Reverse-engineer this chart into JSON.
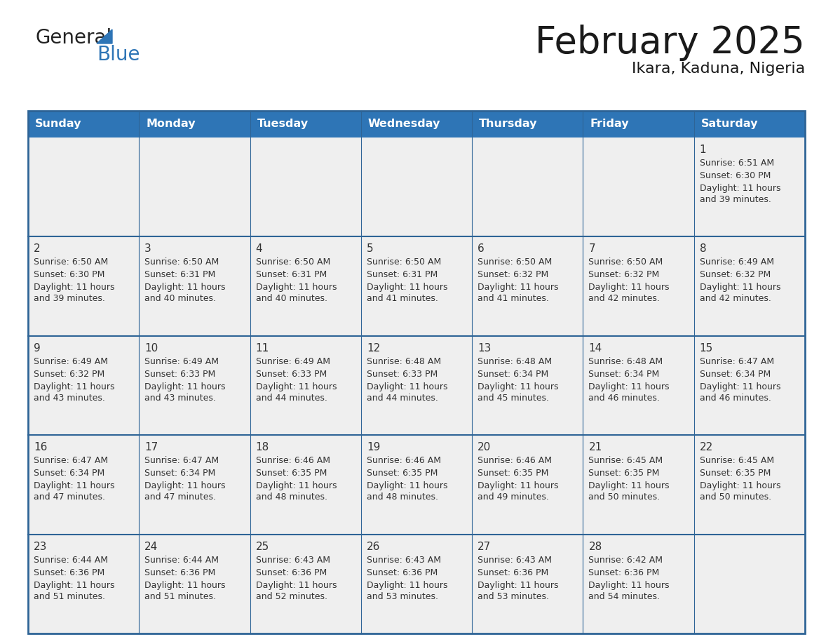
{
  "title": "February 2025",
  "subtitle": "Ikara, Kaduna, Nigeria",
  "header_bg": "#2E75B6",
  "header_text_color": "#FFFFFF",
  "cell_bg": "#EFEFEF",
  "border_color": "#2E6496",
  "text_color": "#333333",
  "day_num_color": "#2E6496",
  "days_of_week": [
    "Sunday",
    "Monday",
    "Tuesday",
    "Wednesday",
    "Thursday",
    "Friday",
    "Saturday"
  ],
  "calendar_data": [
    [
      null,
      null,
      null,
      null,
      null,
      null,
      {
        "day": 1,
        "sunrise": "6:51 AM",
        "sunset": "6:30 PM",
        "daylight_line1": "Daylight: 11 hours",
        "daylight_line2": "and 39 minutes."
      }
    ],
    [
      {
        "day": 2,
        "sunrise": "6:50 AM",
        "sunset": "6:30 PM",
        "daylight_line1": "Daylight: 11 hours",
        "daylight_line2": "and 39 minutes."
      },
      {
        "day": 3,
        "sunrise": "6:50 AM",
        "sunset": "6:31 PM",
        "daylight_line1": "Daylight: 11 hours",
        "daylight_line2": "and 40 minutes."
      },
      {
        "day": 4,
        "sunrise": "6:50 AM",
        "sunset": "6:31 PM",
        "daylight_line1": "Daylight: 11 hours",
        "daylight_line2": "and 40 minutes."
      },
      {
        "day": 5,
        "sunrise": "6:50 AM",
        "sunset": "6:31 PM",
        "daylight_line1": "Daylight: 11 hours",
        "daylight_line2": "and 41 minutes."
      },
      {
        "day": 6,
        "sunrise": "6:50 AM",
        "sunset": "6:32 PM",
        "daylight_line1": "Daylight: 11 hours",
        "daylight_line2": "and 41 minutes."
      },
      {
        "day": 7,
        "sunrise": "6:50 AM",
        "sunset": "6:32 PM",
        "daylight_line1": "Daylight: 11 hours",
        "daylight_line2": "and 42 minutes."
      },
      {
        "day": 8,
        "sunrise": "6:49 AM",
        "sunset": "6:32 PM",
        "daylight_line1": "Daylight: 11 hours",
        "daylight_line2": "and 42 minutes."
      }
    ],
    [
      {
        "day": 9,
        "sunrise": "6:49 AM",
        "sunset": "6:32 PM",
        "daylight_line1": "Daylight: 11 hours",
        "daylight_line2": "and 43 minutes."
      },
      {
        "day": 10,
        "sunrise": "6:49 AM",
        "sunset": "6:33 PM",
        "daylight_line1": "Daylight: 11 hours",
        "daylight_line2": "and 43 minutes."
      },
      {
        "day": 11,
        "sunrise": "6:49 AM",
        "sunset": "6:33 PM",
        "daylight_line1": "Daylight: 11 hours",
        "daylight_line2": "and 44 minutes."
      },
      {
        "day": 12,
        "sunrise": "6:48 AM",
        "sunset": "6:33 PM",
        "daylight_line1": "Daylight: 11 hours",
        "daylight_line2": "and 44 minutes."
      },
      {
        "day": 13,
        "sunrise": "6:48 AM",
        "sunset": "6:34 PM",
        "daylight_line1": "Daylight: 11 hours",
        "daylight_line2": "and 45 minutes."
      },
      {
        "day": 14,
        "sunrise": "6:48 AM",
        "sunset": "6:34 PM",
        "daylight_line1": "Daylight: 11 hours",
        "daylight_line2": "and 46 minutes."
      },
      {
        "day": 15,
        "sunrise": "6:47 AM",
        "sunset": "6:34 PM",
        "daylight_line1": "Daylight: 11 hours",
        "daylight_line2": "and 46 minutes."
      }
    ],
    [
      {
        "day": 16,
        "sunrise": "6:47 AM",
        "sunset": "6:34 PM",
        "daylight_line1": "Daylight: 11 hours",
        "daylight_line2": "and 47 minutes."
      },
      {
        "day": 17,
        "sunrise": "6:47 AM",
        "sunset": "6:34 PM",
        "daylight_line1": "Daylight: 11 hours",
        "daylight_line2": "and 47 minutes."
      },
      {
        "day": 18,
        "sunrise": "6:46 AM",
        "sunset": "6:35 PM",
        "daylight_line1": "Daylight: 11 hours",
        "daylight_line2": "and 48 minutes."
      },
      {
        "day": 19,
        "sunrise": "6:46 AM",
        "sunset": "6:35 PM",
        "daylight_line1": "Daylight: 11 hours",
        "daylight_line2": "and 48 minutes."
      },
      {
        "day": 20,
        "sunrise": "6:46 AM",
        "sunset": "6:35 PM",
        "daylight_line1": "Daylight: 11 hours",
        "daylight_line2": "and 49 minutes."
      },
      {
        "day": 21,
        "sunrise": "6:45 AM",
        "sunset": "6:35 PM",
        "daylight_line1": "Daylight: 11 hours",
        "daylight_line2": "and 50 minutes."
      },
      {
        "day": 22,
        "sunrise": "6:45 AM",
        "sunset": "6:35 PM",
        "daylight_line1": "Daylight: 11 hours",
        "daylight_line2": "and 50 minutes."
      }
    ],
    [
      {
        "day": 23,
        "sunrise": "6:44 AM",
        "sunset": "6:36 PM",
        "daylight_line1": "Daylight: 11 hours",
        "daylight_line2": "and 51 minutes."
      },
      {
        "day": 24,
        "sunrise": "6:44 AM",
        "sunset": "6:36 PM",
        "daylight_line1": "Daylight: 11 hours",
        "daylight_line2": "and 51 minutes."
      },
      {
        "day": 25,
        "sunrise": "6:43 AM",
        "sunset": "6:36 PM",
        "daylight_line1": "Daylight: 11 hours",
        "daylight_line2": "and 52 minutes."
      },
      {
        "day": 26,
        "sunrise": "6:43 AM",
        "sunset": "6:36 PM",
        "daylight_line1": "Daylight: 11 hours",
        "daylight_line2": "and 53 minutes."
      },
      {
        "day": 27,
        "sunrise": "6:43 AM",
        "sunset": "6:36 PM",
        "daylight_line1": "Daylight: 11 hours",
        "daylight_line2": "and 53 minutes."
      },
      {
        "day": 28,
        "sunrise": "6:42 AM",
        "sunset": "6:36 PM",
        "daylight_line1": "Daylight: 11 hours",
        "daylight_line2": "and 54 minutes."
      },
      null
    ]
  ],
  "logo_text_general": "General",
  "logo_text_blue": "Blue",
  "logo_color_general": "#222222",
  "logo_color_blue": "#2E75B6"
}
